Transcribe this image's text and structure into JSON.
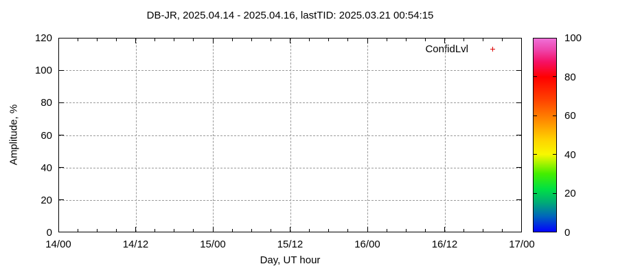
{
  "title": "DB-JR, 2025.04.14 - 2025.04.16, lastTID: 2025.03.21 00:54:15",
  "legend": {
    "label": "ConfidLvl",
    "marker": "plus-point-marker",
    "marker_color": "#dd0000"
  },
  "colors": {
    "background": "#ffffff",
    "axis": "#000000",
    "grid": "#9a9a9a",
    "text": "#000000",
    "marker_red": "#dd0000"
  },
  "chart_data": {
    "type": "scatter",
    "title": "DB-JR, 2025.04.14 - 2025.04.16, lastTID: 2025.03.21 00:54:15",
    "xlabel": "Day, UT hour",
    "ylabel": "Amplitude, %",
    "x_tick_labels": [
      "14/00",
      "14/12",
      "15/00",
      "15/12",
      "16/00",
      "16/12",
      "17/00"
    ],
    "x_minor_tick_interval_hours": 3,
    "x_major_tick_interval_hours": 12,
    "x_range_hours": [
      0,
      72
    ],
    "y_tick_labels": [
      "0",
      "20",
      "40",
      "60",
      "80",
      "100",
      "120"
    ],
    "y_tick_values": [
      0,
      20,
      40,
      60,
      80,
      100,
      120
    ],
    "ylim": [
      0,
      120
    ],
    "grid": "dashed",
    "legend_position": "top-right-inside",
    "series": [
      {
        "name": "ConfidLvl",
        "style": "points",
        "color": "#dd0000",
        "points": []
      }
    ],
    "colorbar": {
      "range": [
        0,
        100
      ],
      "tick_label_values": [
        0,
        20,
        40,
        60,
        80,
        100
      ],
      "edge_tick_values": [
        20,
        40,
        60,
        80
      ],
      "gradient_bottom_to_top": [
        "#0202ff",
        "#0066bb",
        "#00aa77",
        "#00e044",
        "#44ee00",
        "#f8f800",
        "#ffd000",
        "#ff8800",
        "#ff4400",
        "#ff0000",
        "#f51166",
        "#ee44aa",
        "#ef70d8"
      ]
    }
  }
}
